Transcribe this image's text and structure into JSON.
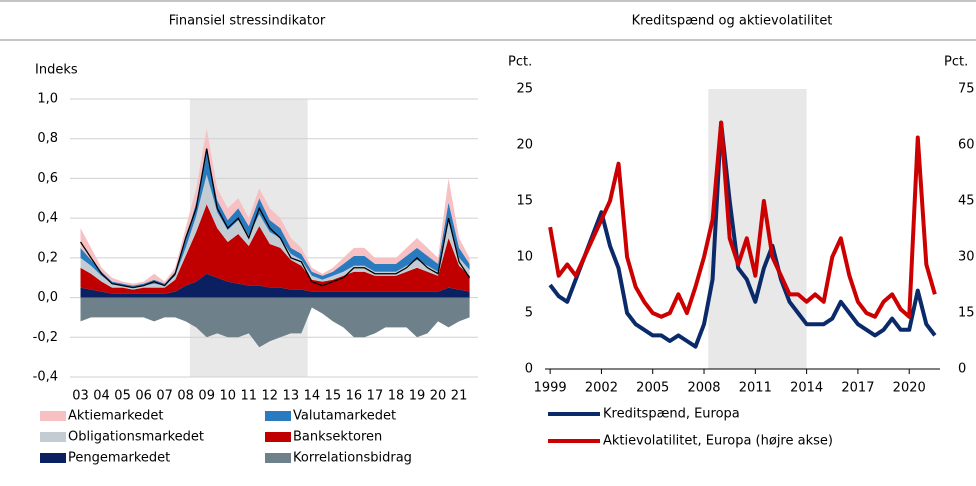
{
  "chart_data": [
    {
      "type": "stacked_area",
      "title": "Finansiel stressindikator",
      "y_label": "Indeks",
      "x": [
        2003,
        2003.5,
        2004,
        2004.5,
        2005,
        2005.5,
        2006,
        2006.5,
        2007,
        2007.5,
        2008,
        2008.5,
        2009,
        2009.5,
        2010,
        2010.5,
        2011,
        2011.5,
        2012,
        2012.5,
        2013,
        2013.5,
        2014,
        2014.5,
        2015,
        2015.5,
        2016,
        2016.5,
        2017,
        2017.5,
        2018,
        2018.5,
        2019,
        2019.5,
        2020,
        2020.5,
        2021,
        2021.5
      ],
      "series": [
        {
          "name": "Aktiemarkedet",
          "color": "#f7c0c3",
          "values": [
            0.1,
            0.06,
            0.02,
            0.02,
            0.01,
            0.01,
            0.01,
            0.03,
            0.01,
            0.02,
            0.06,
            0.07,
            0.1,
            0.06,
            0.06,
            0.05,
            0.04,
            0.05,
            0.06,
            0.05,
            0.05,
            0.03,
            0.02,
            0.01,
            0.02,
            0.03,
            0.04,
            0.04,
            0.03,
            0.03,
            0.03,
            0.04,
            0.05,
            0.04,
            0.03,
            0.12,
            0.05,
            0.03
          ]
        },
        {
          "name": "Valutamarkedet",
          "color": "#2a7abf",
          "values": [
            0.05,
            0.03,
            0.02,
            0.01,
            0.01,
            0.01,
            0.01,
            0.02,
            0.01,
            0.02,
            0.04,
            0.07,
            0.13,
            0.06,
            0.05,
            0.06,
            0.05,
            0.08,
            0.06,
            0.05,
            0.03,
            0.03,
            0.02,
            0.02,
            0.02,
            0.04,
            0.05,
            0.05,
            0.04,
            0.04,
            0.04,
            0.05,
            0.06,
            0.05,
            0.04,
            0.1,
            0.05,
            0.03
          ]
        },
        {
          "name": "Obligationsmarkedet",
          "color": "#c3cbd3",
          "values": [
            0.05,
            0.04,
            0.03,
            0.02,
            0.01,
            0.01,
            0.01,
            0.02,
            0.01,
            0.02,
            0.04,
            0.08,
            0.15,
            0.08,
            0.06,
            0.07,
            0.05,
            0.06,
            0.06,
            0.05,
            0.03,
            0.03,
            0.02,
            0.01,
            0.02,
            0.02,
            0.03,
            0.03,
            0.02,
            0.02,
            0.02,
            0.03,
            0.04,
            0.03,
            0.02,
            0.08,
            0.04,
            0.03
          ]
        },
        {
          "name": "Banksektoren",
          "color": "#c00000",
          "values": [
            0.1,
            0.08,
            0.05,
            0.03,
            0.03,
            0.02,
            0.03,
            0.03,
            0.03,
            0.06,
            0.15,
            0.25,
            0.35,
            0.25,
            0.2,
            0.25,
            0.2,
            0.3,
            0.22,
            0.2,
            0.15,
            0.12,
            0.06,
            0.05,
            0.06,
            0.08,
            0.1,
            0.1,
            0.08,
            0.08,
            0.08,
            0.1,
            0.12,
            0.1,
            0.08,
            0.25,
            0.12,
            0.08
          ]
        },
        {
          "name": "Pengemarkedet",
          "color": "#0a2060",
          "values": [
            0.05,
            0.04,
            0.03,
            0.02,
            0.02,
            0.02,
            0.02,
            0.02,
            0.02,
            0.03,
            0.06,
            0.08,
            0.12,
            0.1,
            0.08,
            0.07,
            0.06,
            0.06,
            0.05,
            0.05,
            0.04,
            0.04,
            0.03,
            0.03,
            0.03,
            0.03,
            0.03,
            0.03,
            0.03,
            0.03,
            0.03,
            0.03,
            0.03,
            0.03,
            0.03,
            0.05,
            0.04,
            0.03
          ]
        },
        {
          "name": "Korrelationsbidrag",
          "color": "#6e8089",
          "values": [
            -0.12,
            -0.1,
            -0.1,
            -0.1,
            -0.1,
            -0.1,
            -0.1,
            -0.12,
            -0.1,
            -0.1,
            -0.12,
            -0.15,
            -0.2,
            -0.18,
            -0.2,
            -0.2,
            -0.18,
            -0.25,
            -0.22,
            -0.2,
            -0.18,
            -0.18,
            -0.05,
            -0.08,
            -0.12,
            -0.15,
            -0.2,
            -0.2,
            -0.18,
            -0.15,
            -0.15,
            -0.15,
            -0.2,
            -0.18,
            -0.12,
            -0.15,
            -0.12,
            -0.1
          ]
        }
      ],
      "line": {
        "color": "#000000",
        "values": [
          0.28,
          0.2,
          0.12,
          0.07,
          0.06,
          0.05,
          0.06,
          0.08,
          0.06,
          0.12,
          0.3,
          0.45,
          0.75,
          0.45,
          0.35,
          0.4,
          0.3,
          0.45,
          0.35,
          0.3,
          0.2,
          0.18,
          0.08,
          0.06,
          0.08,
          0.1,
          0.15,
          0.15,
          0.12,
          0.12,
          0.12,
          0.15,
          0.2,
          0.15,
          0.12,
          0.4,
          0.18,
          0.1
        ]
      },
      "xlim": [
        2002.5,
        2021.9
      ],
      "xticks": [
        {
          "value": 2003,
          "label": "03"
        },
        {
          "value": 2004,
          "label": "04"
        },
        {
          "value": 2005,
          "label": "05"
        },
        {
          "value": 2006,
          "label": "06"
        },
        {
          "value": 2007,
          "label": "07"
        },
        {
          "value": 2008,
          "label": "08"
        },
        {
          "value": 2009,
          "label": "09"
        },
        {
          "value": 2010,
          "label": "10"
        },
        {
          "value": 2011,
          "label": "11"
        },
        {
          "value": 2012,
          "label": "12"
        },
        {
          "value": 2013,
          "label": "13"
        },
        {
          "value": 2014,
          "label": "14"
        },
        {
          "value": 2015,
          "label": "15"
        },
        {
          "value": 2016,
          "label": "16"
        },
        {
          "value": 2017,
          "label": "17"
        },
        {
          "value": 2018,
          "label": "18"
        },
        {
          "value": 2019,
          "label": "19"
        },
        {
          "value": 2020,
          "label": "20"
        },
        {
          "value": 2021,
          "label": "21"
        }
      ],
      "ylim": [
        -0.4,
        1.0
      ],
      "yticks": [
        {
          "value": -0.4,
          "label": "-0,4"
        },
        {
          "value": -0.2,
          "label": "-0,2"
        },
        {
          "value": 0,
          "label": "0,0"
        },
        {
          "value": 0.2,
          "label": "0,2"
        },
        {
          "value": 0.4,
          "label": "0,4"
        },
        {
          "value": 0.6,
          "label": "0,6"
        },
        {
          "value": 0.8,
          "label": "0,8"
        },
        {
          "value": 1.0,
          "label": "1,0"
        }
      ],
      "grid": true,
      "shaded_span": [
        2008.2,
        2013.8
      ],
      "shade_color": "#e8e8e8"
    },
    {
      "type": "line",
      "title": "Kreditspænd og aktievolatilitet",
      "y_label": "Pct.",
      "y2_label": "Pct.",
      "x": [
        1999,
        1999.5,
        2000,
        2000.5,
        2001,
        2001.5,
        2002,
        2002.5,
        2003,
        2003.5,
        2004,
        2004.5,
        2005,
        2005.5,
        2006,
        2006.5,
        2007,
        2007.5,
        2008,
        2008.5,
        2009,
        2009.5,
        2010,
        2010.5,
        2011,
        2011.5,
        2012,
        2012.5,
        2013,
        2013.5,
        2014,
        2014.5,
        2015,
        2015.5,
        2016,
        2016.5,
        2017,
        2017.5,
        2018,
        2018.5,
        2019,
        2019.5,
        2020,
        2020.5,
        2021,
        2021.5
      ],
      "series": [
        {
          "name": "Kreditspænd, Europa",
          "color": "#0a2a6a",
          "values": [
            7.5,
            6.5,
            6,
            8,
            10,
            12,
            14,
            11,
            9,
            5,
            4,
            3.5,
            3,
            3,
            2.5,
            3,
            2.5,
            2,
            4,
            8,
            22,
            15,
            9,
            8,
            6,
            9,
            11,
            8,
            6,
            5,
            4,
            4,
            4,
            4.5,
            6,
            5,
            4,
            3.5,
            3,
            3.5,
            4.5,
            3.5,
            3.5,
            7,
            4,
            3
          ]
        },
        {
          "name": "Aktievolatilitet, Europa (højre akse)",
          "color": "#cc0000",
          "axis": "y2",
          "values": [
            38,
            25,
            28,
            25,
            30,
            35,
            40,
            45,
            55,
            30,
            22,
            18,
            15,
            14,
            15,
            20,
            15,
            22,
            30,
            40,
            66,
            35,
            28,
            35,
            25,
            45,
            30,
            25,
            20,
            20,
            18,
            20,
            18,
            30,
            35,
            25,
            18,
            15,
            14,
            18,
            20,
            16,
            14,
            62,
            28,
            20
          ]
        }
      ],
      "xlim": [
        1998.7,
        2021.8
      ],
      "xticks": [
        1999,
        2002,
        2005,
        2008,
        2011,
        2014,
        2017,
        2020
      ],
      "ylim": [
        0,
        25
      ],
      "yticks": [
        0,
        5,
        10,
        15,
        20,
        25
      ],
      "y2lim": [
        0,
        75
      ],
      "y2ticks": [
        0,
        15,
        30,
        45,
        60,
        75
      ],
      "grid": false,
      "shaded_span": [
        2008.25,
        2014.0
      ],
      "shade_color": "#e8e8e8"
    }
  ]
}
